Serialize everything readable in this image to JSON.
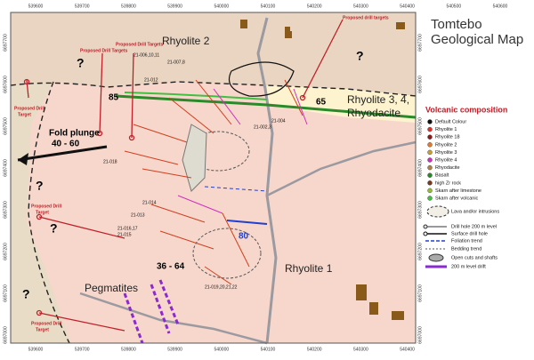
{
  "header": {
    "title_line1": "Tomtebo",
    "title_line2": "Geological Map"
  },
  "grid": {
    "top": [
      "539600",
      "539700",
      "539800",
      "539900",
      "540000",
      "540100",
      "540200",
      "540300",
      "540400",
      "540500",
      "540600"
    ],
    "bottom": [
      "539600",
      "539700",
      "539800",
      "539900",
      "540000",
      "540100",
      "540200",
      "540300",
      "540400"
    ],
    "left": [
      "6697700",
      "6697600",
      "6697500",
      "6697400",
      "6697300",
      "6697200",
      "6697100",
      "6697000"
    ],
    "right": [
      "6697700",
      "6697600",
      "6697500",
      "6697400",
      "6697300",
      "6697200",
      "6697100",
      "6697000"
    ]
  },
  "map": {
    "units": [
      "Rhyolite 2",
      "Rhyolite 1",
      "Rhyolite 3, 4,",
      "Rhyodacite",
      "Pegmatites"
    ],
    "fold": [
      "Fold plunge",
      "40 - 60"
    ],
    "dips": [
      "85",
      "65",
      "80",
      "36 - 64"
    ],
    "unknown": [
      "?",
      "?",
      "?",
      "?",
      "?"
    ],
    "targets": [
      "Proposed drill targets",
      "Proposed Drill Targets",
      "Proposed Drill Targets",
      "Proposed Drill",
      "Target",
      "Proposed Drill",
      "Target",
      "Proposed Drill",
      "Target"
    ],
    "holes": [
      "21-006,10,11",
      "21-007,8",
      "21-012",
      "21-004",
      "21-002,3",
      "21-018",
      "21-014",
      "21-013",
      "21-016,17",
      "21-015",
      "21-019,20,21,22"
    ]
  },
  "legend": {
    "title": "Volcanic composition",
    "items": [
      {
        "label": "Default Colour",
        "color": "#111111"
      },
      {
        "label": "Rhyolite 1",
        "color": "#e0302a"
      },
      {
        "label": "Rhyolite 18",
        "color": "#8b1a1a"
      },
      {
        "label": "Rhyolite 2",
        "color": "#e8782a"
      },
      {
        "label": "Rhyolite 3",
        "color": "#c8a030"
      },
      {
        "label": "Rhyolite 4",
        "color": "#d030c0"
      },
      {
        "label": "Rhyodacite",
        "color": "#b08040"
      },
      {
        "label": "Basalt",
        "color": "#2a8a2a"
      },
      {
        "label": "high Zr rock",
        "color": "#7a3a20"
      },
      {
        "label": "Skarn after limestone",
        "color": "#90c030"
      },
      {
        "label": "Skarn after volcanic",
        "color": "#40c040"
      }
    ],
    "symbols": [
      "Lava and/or intrusions",
      "Drill hole 200 m level",
      "Surface drill hole",
      "Foliation trend",
      "Bedding trend",
      "Open cuts and shafts",
      "200 m level drift"
    ]
  }
}
